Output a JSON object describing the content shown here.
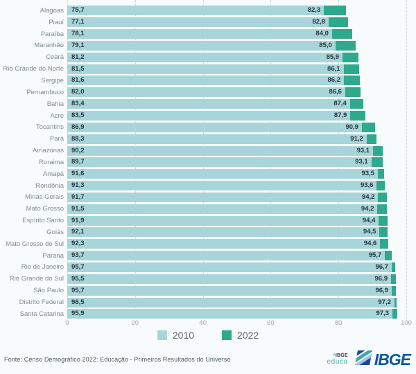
{
  "chart_data": {
    "type": "bar",
    "orientation": "horizontal",
    "categories": [
      "Alagoas",
      "Piauí",
      "Paraíba",
      "Maranhão",
      "Ceará",
      "Rio Grande do Norte",
      "Sergipe",
      "Pernambuco",
      "Bahia",
      "Acre",
      "Tocantins",
      "Pará",
      "Amazonas",
      "Roraima",
      "Amapá",
      "Rondônia",
      "Minas Gerais",
      "Mato Grosso",
      "Espírito Santo",
      "Goiás",
      "Mato Grosso do Sul",
      "Paraná",
      "Rio de Janeiro",
      "Rio Grande do Sul",
      "São Paulo",
      "Distrito Federal",
      "Santa Catarina"
    ],
    "series": [
      {
        "name": "2010",
        "color": "#a8d5da",
        "values": [
          75.7,
          77.1,
          78.1,
          79.1,
          81.2,
          81.5,
          81.6,
          82.0,
          83.4,
          83.5,
          86.9,
          88.3,
          90.2,
          89.7,
          91.6,
          91.3,
          91.7,
          91.5,
          91.9,
          92.1,
          92.3,
          93.7,
          95.7,
          95.5,
          95.7,
          96.5,
          95.9
        ]
      },
      {
        "name": "2022",
        "color": "#2fa98c",
        "values": [
          82.3,
          82.8,
          84.0,
          85.0,
          85.9,
          86.1,
          86.2,
          86.6,
          87.4,
          87.9,
          90.9,
          91.2,
          93.1,
          93.1,
          93.5,
          93.6,
          94.2,
          94.2,
          94.4,
          94.5,
          94.6,
          95.7,
          96.7,
          96.9,
          96.9,
          97.2,
          97.3
        ]
      }
    ],
    "xlim": [
      0,
      100
    ],
    "xticks": [
      0,
      20,
      40,
      60,
      80,
      100
    ],
    "grid": "dashed-vertical",
    "legend_position": "bottom",
    "value_label_format": "decimal-comma"
  },
  "legend": {
    "items": [
      {
        "label": "2010",
        "color": "#a8d5da"
      },
      {
        "label": "2022",
        "color": "#2fa98c"
      }
    ]
  },
  "footer": {
    "source": "Fonte: Censo Demográfico 2022: Educação - Primeiros Resultados do Universo",
    "educa_logo": {
      "dots": "•*",
      "ibge": "IBGE",
      "word": "educa"
    },
    "ibge_logo": {
      "text": "IBGE"
    }
  }
}
